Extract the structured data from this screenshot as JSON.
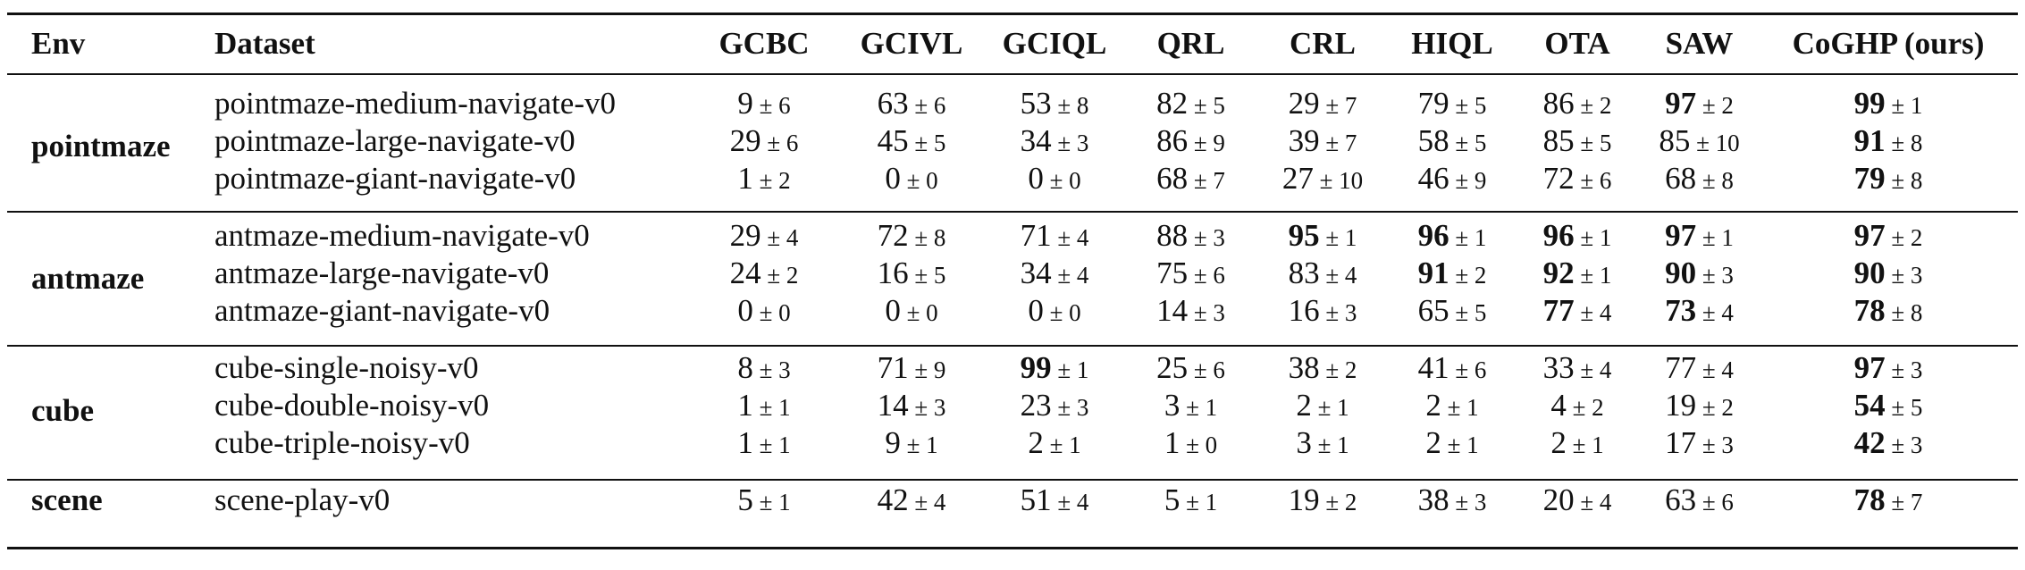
{
  "columns": {
    "env": "Env",
    "dataset": "Dataset",
    "methods": [
      "GCBC",
      "GCIVL",
      "GCIQL",
      "QRL",
      "CRL",
      "HIQL",
      "OTA",
      "SAW",
      "CoGHP (ours)"
    ]
  },
  "groups": [
    {
      "env": "pointmaze",
      "rows": [
        {
          "dataset": "pointmaze-medium-navigate-v0",
          "cells": [
            {
              "mean": "9",
              "std": "6",
              "bold": false
            },
            {
              "mean": "63",
              "std": "6",
              "bold": false
            },
            {
              "mean": "53",
              "std": "8",
              "bold": false
            },
            {
              "mean": "82",
              "std": "5",
              "bold": false
            },
            {
              "mean": "29",
              "std": "7",
              "bold": false
            },
            {
              "mean": "79",
              "std": "5",
              "bold": false
            },
            {
              "mean": "86",
              "std": "2",
              "bold": false
            },
            {
              "mean": "97",
              "std": "2",
              "bold": true
            },
            {
              "mean": "99",
              "std": "1",
              "bold": true
            }
          ]
        },
        {
          "dataset": "pointmaze-large-navigate-v0",
          "cells": [
            {
              "mean": "29",
              "std": "6",
              "bold": false
            },
            {
              "mean": "45",
              "std": "5",
              "bold": false
            },
            {
              "mean": "34",
              "std": "3",
              "bold": false
            },
            {
              "mean": "86",
              "std": "9",
              "bold": false
            },
            {
              "mean": "39",
              "std": "7",
              "bold": false
            },
            {
              "mean": "58",
              "std": "5",
              "bold": false
            },
            {
              "mean": "85",
              "std": "5",
              "bold": false
            },
            {
              "mean": "85",
              "std": "10",
              "bold": false
            },
            {
              "mean": "91",
              "std": "8",
              "bold": true
            }
          ]
        },
        {
          "dataset": "pointmaze-giant-navigate-v0",
          "cells": [
            {
              "mean": "1",
              "std": "2",
              "bold": false
            },
            {
              "mean": "0",
              "std": "0",
              "bold": false
            },
            {
              "mean": "0",
              "std": "0",
              "bold": false
            },
            {
              "mean": "68",
              "std": "7",
              "bold": false
            },
            {
              "mean": "27",
              "std": "10",
              "bold": false
            },
            {
              "mean": "46",
              "std": "9",
              "bold": false
            },
            {
              "mean": "72",
              "std": "6",
              "bold": false
            },
            {
              "mean": "68",
              "std": "8",
              "bold": false
            },
            {
              "mean": "79",
              "std": "8",
              "bold": true
            }
          ]
        }
      ]
    },
    {
      "env": "antmaze",
      "rows": [
        {
          "dataset": "antmaze-medium-navigate-v0",
          "cells": [
            {
              "mean": "29",
              "std": "4",
              "bold": false
            },
            {
              "mean": "72",
              "std": "8",
              "bold": false
            },
            {
              "mean": "71",
              "std": "4",
              "bold": false
            },
            {
              "mean": "88",
              "std": "3",
              "bold": false
            },
            {
              "mean": "95",
              "std": "1",
              "bold": true
            },
            {
              "mean": "96",
              "std": "1",
              "bold": true
            },
            {
              "mean": "96",
              "std": "1",
              "bold": true
            },
            {
              "mean": "97",
              "std": "1",
              "bold": true
            },
            {
              "mean": "97",
              "std": "2",
              "bold": true
            }
          ]
        },
        {
          "dataset": "antmaze-large-navigate-v0",
          "cells": [
            {
              "mean": "24",
              "std": "2",
              "bold": false
            },
            {
              "mean": "16",
              "std": "5",
              "bold": false
            },
            {
              "mean": "34",
              "std": "4",
              "bold": false
            },
            {
              "mean": "75",
              "std": "6",
              "bold": false
            },
            {
              "mean": "83",
              "std": "4",
              "bold": false
            },
            {
              "mean": "91",
              "std": "2",
              "bold": true
            },
            {
              "mean": "92",
              "std": "1",
              "bold": true
            },
            {
              "mean": "90",
              "std": "3",
              "bold": true
            },
            {
              "mean": "90",
              "std": "3",
              "bold": true
            }
          ]
        },
        {
          "dataset": "antmaze-giant-navigate-v0",
          "cells": [
            {
              "mean": "0",
              "std": "0",
              "bold": false
            },
            {
              "mean": "0",
              "std": "0",
              "bold": false
            },
            {
              "mean": "0",
              "std": "0",
              "bold": false
            },
            {
              "mean": "14",
              "std": "3",
              "bold": false
            },
            {
              "mean": "16",
              "std": "3",
              "bold": false
            },
            {
              "mean": "65",
              "std": "5",
              "bold": false
            },
            {
              "mean": "77",
              "std": "4",
              "bold": true
            },
            {
              "mean": "73",
              "std": "4",
              "bold": true
            },
            {
              "mean": "78",
              "std": "8",
              "bold": true
            }
          ]
        }
      ]
    },
    {
      "env": "cube",
      "rows": [
        {
          "dataset": "cube-single-noisy-v0",
          "cells": [
            {
              "mean": "8",
              "std": "3",
              "bold": false
            },
            {
              "mean": "71",
              "std": "9",
              "bold": false
            },
            {
              "mean": "99",
              "std": "1",
              "bold": true
            },
            {
              "mean": "25",
              "std": "6",
              "bold": false
            },
            {
              "mean": "38",
              "std": "2",
              "bold": false
            },
            {
              "mean": "41",
              "std": "6",
              "bold": false
            },
            {
              "mean": "33",
              "std": "4",
              "bold": false
            },
            {
              "mean": "77",
              "std": "4",
              "bold": false
            },
            {
              "mean": "97",
              "std": "3",
              "bold": true
            }
          ]
        },
        {
          "dataset": "cube-double-noisy-v0",
          "cells": [
            {
              "mean": "1",
              "std": "1",
              "bold": false
            },
            {
              "mean": "14",
              "std": "3",
              "bold": false
            },
            {
              "mean": "23",
              "std": "3",
              "bold": false
            },
            {
              "mean": "3",
              "std": "1",
              "bold": false
            },
            {
              "mean": "2",
              "std": "1",
              "bold": false
            },
            {
              "mean": "2",
              "std": "1",
              "bold": false
            },
            {
              "mean": "4",
              "std": "2",
              "bold": false
            },
            {
              "mean": "19",
              "std": "2",
              "bold": false
            },
            {
              "mean": "54",
              "std": "5",
              "bold": true
            }
          ]
        },
        {
          "dataset": "cube-triple-noisy-v0",
          "cells": [
            {
              "mean": "1",
              "std": "1",
              "bold": false
            },
            {
              "mean": "9",
              "std": "1",
              "bold": false
            },
            {
              "mean": "2",
              "std": "1",
              "bold": false
            },
            {
              "mean": "1",
              "std": "0",
              "bold": false
            },
            {
              "mean": "3",
              "std": "1",
              "bold": false
            },
            {
              "mean": "2",
              "std": "1",
              "bold": false
            },
            {
              "mean": "2",
              "std": "1",
              "bold": false
            },
            {
              "mean": "17",
              "std": "3",
              "bold": false
            },
            {
              "mean": "42",
              "std": "3",
              "bold": true
            }
          ]
        }
      ]
    },
    {
      "env": "scene",
      "rows": [
        {
          "dataset": "scene-play-v0",
          "cells": [
            {
              "mean": "5",
              "std": "1",
              "bold": false
            },
            {
              "mean": "42",
              "std": "4",
              "bold": false
            },
            {
              "mean": "51",
              "std": "4",
              "bold": false
            },
            {
              "mean": "5",
              "std": "1",
              "bold": false
            },
            {
              "mean": "19",
              "std": "2",
              "bold": false
            },
            {
              "mean": "38",
              "std": "3",
              "bold": false
            },
            {
              "mean": "20",
              "std": "4",
              "bold": false
            },
            {
              "mean": "63",
              "std": "6",
              "bold": false
            },
            {
              "mean": "78",
              "std": "7",
              "bold": true
            }
          ]
        }
      ]
    }
  ]
}
